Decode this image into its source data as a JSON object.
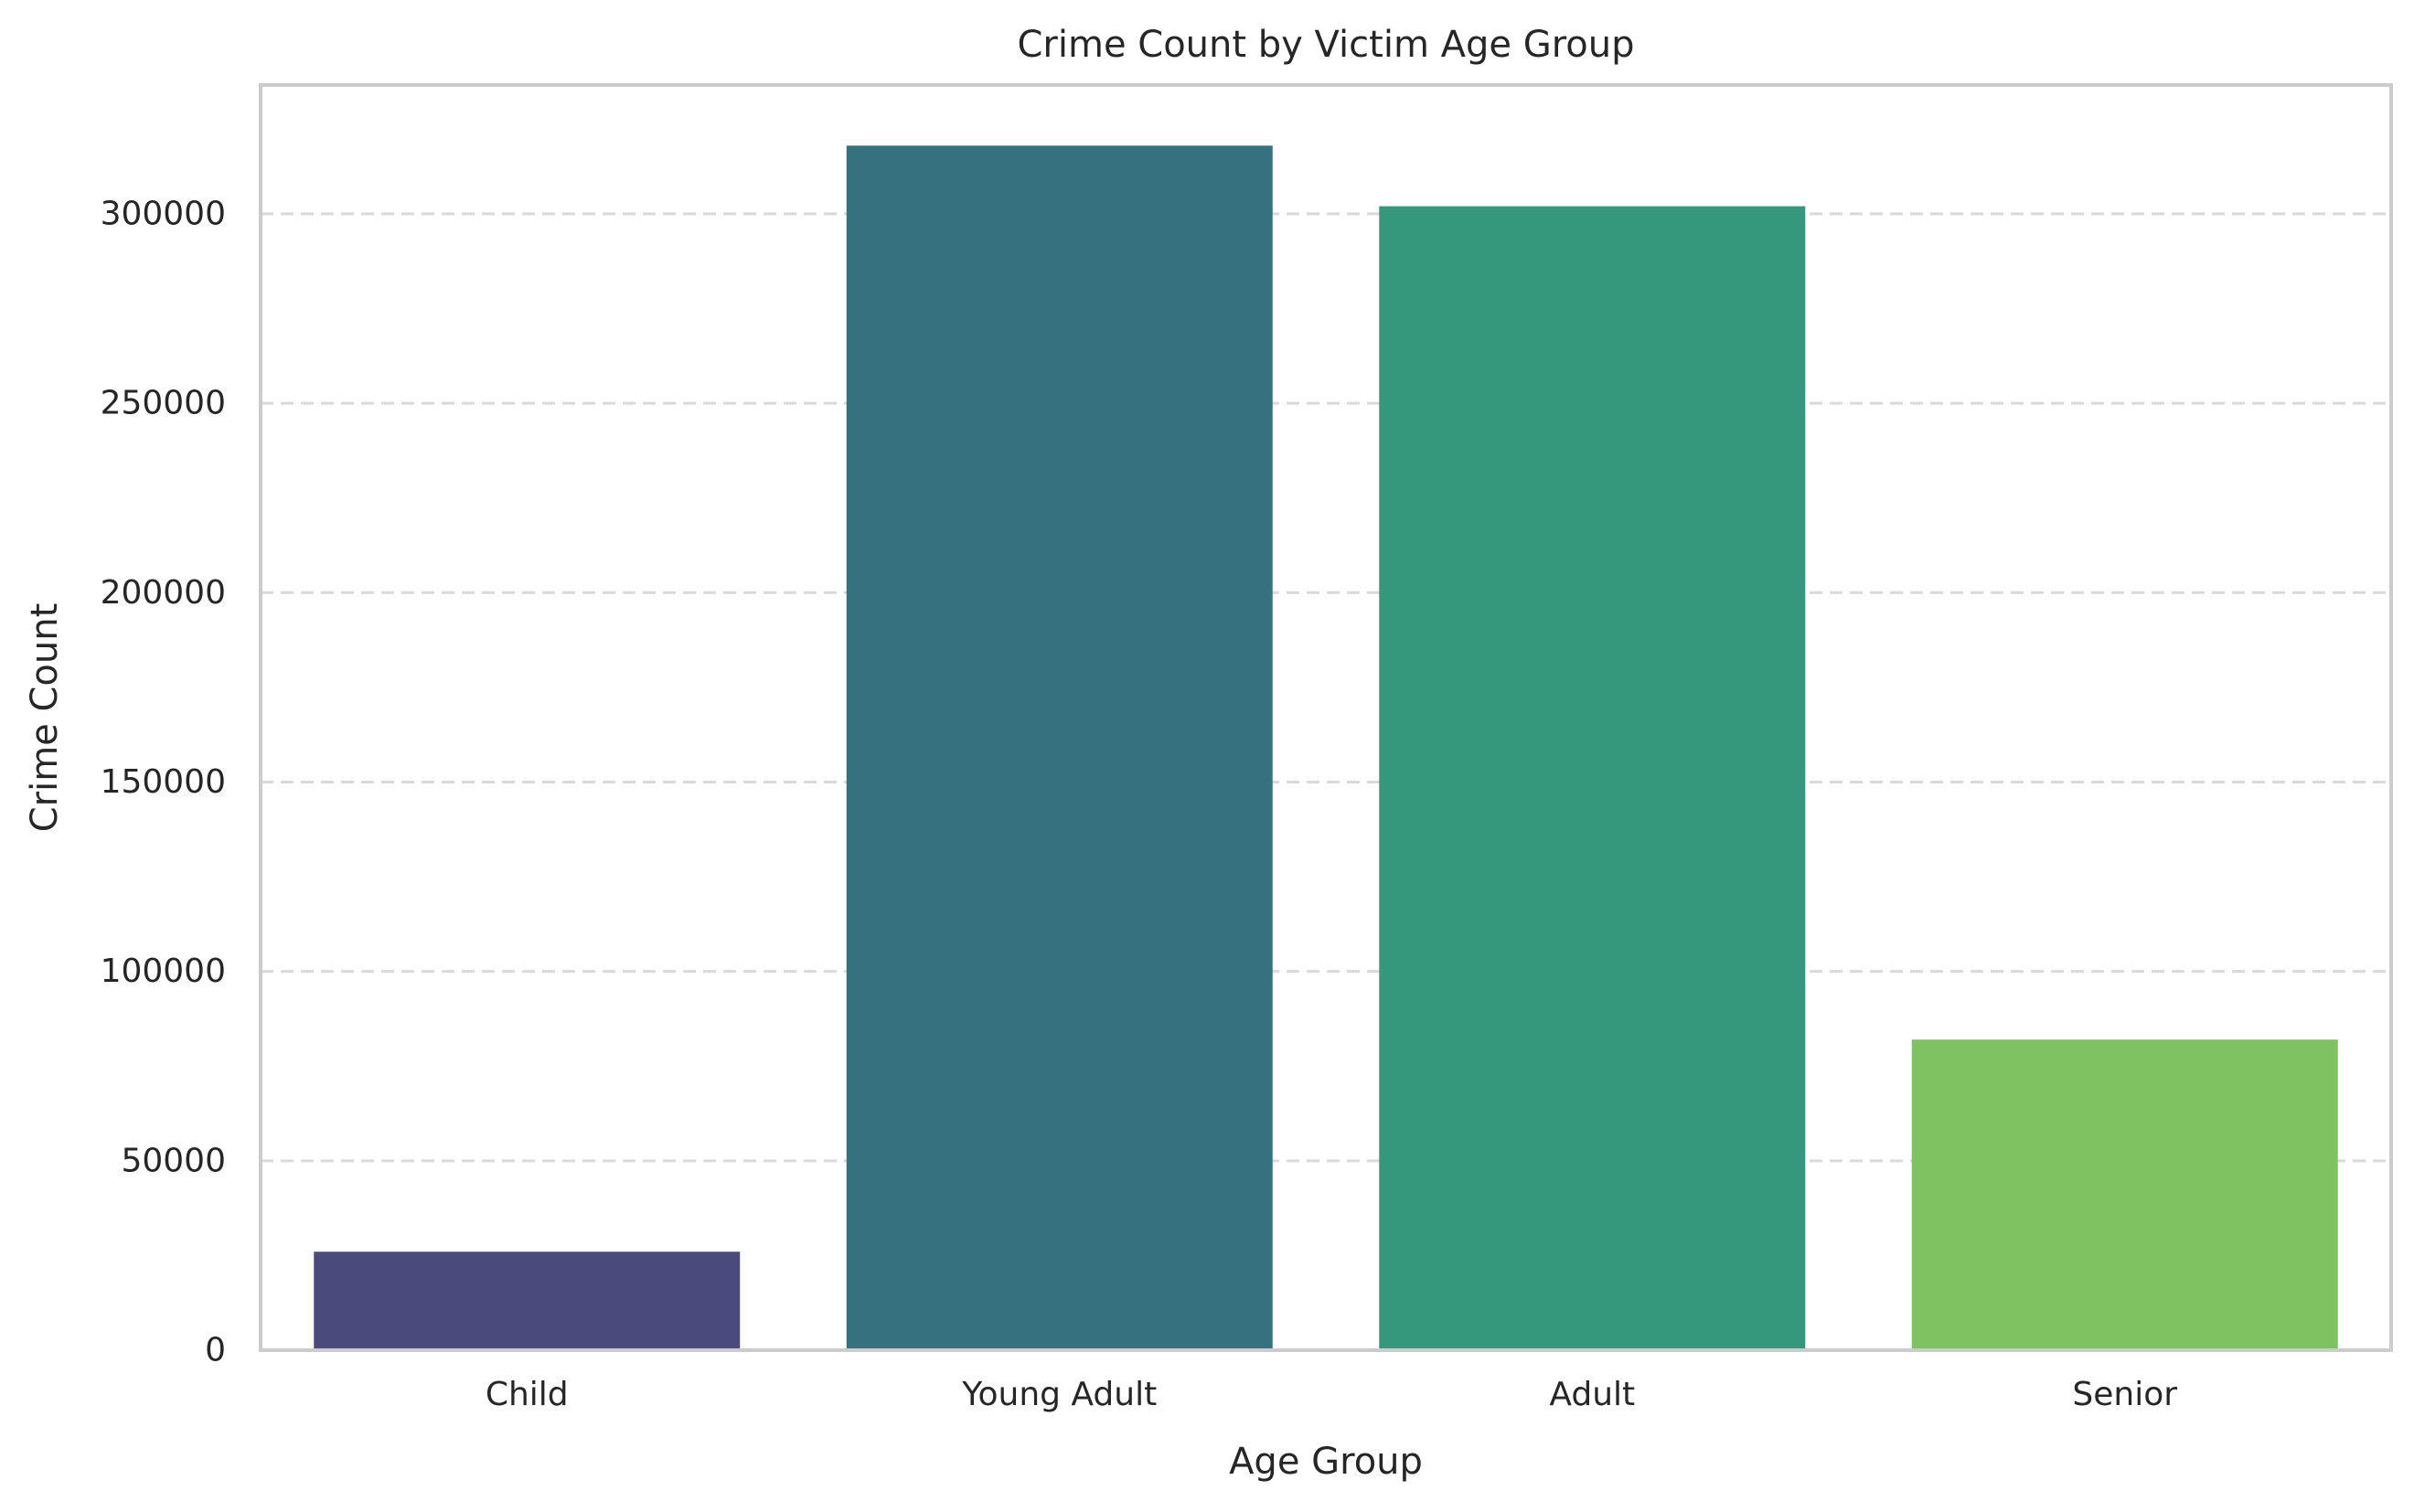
{
  "chart_data": {
    "type": "bar",
    "title": "Crime Count by Victim Age Group",
    "xlabel": "Age Group",
    "ylabel": "Crime Count",
    "categories": [
      "Child",
      "Young Adult",
      "Adult",
      "Senior"
    ],
    "values": [
      26000,
      318000,
      302000,
      82000
    ],
    "colors": [
      "#4a4a7d",
      "#367180",
      "#35987c",
      "#7fc262"
    ],
    "ylim": [
      0,
      334000
    ],
    "yticks": [
      0,
      50000,
      100000,
      150000,
      200000,
      250000,
      300000
    ],
    "ytick_labels": [
      "0",
      "50000",
      "100000",
      "150000",
      "200000",
      "250000",
      "300000"
    ],
    "grid": "y-dashed",
    "frame_color": "#cccccc",
    "grid_color": "#d9d9d9"
  }
}
